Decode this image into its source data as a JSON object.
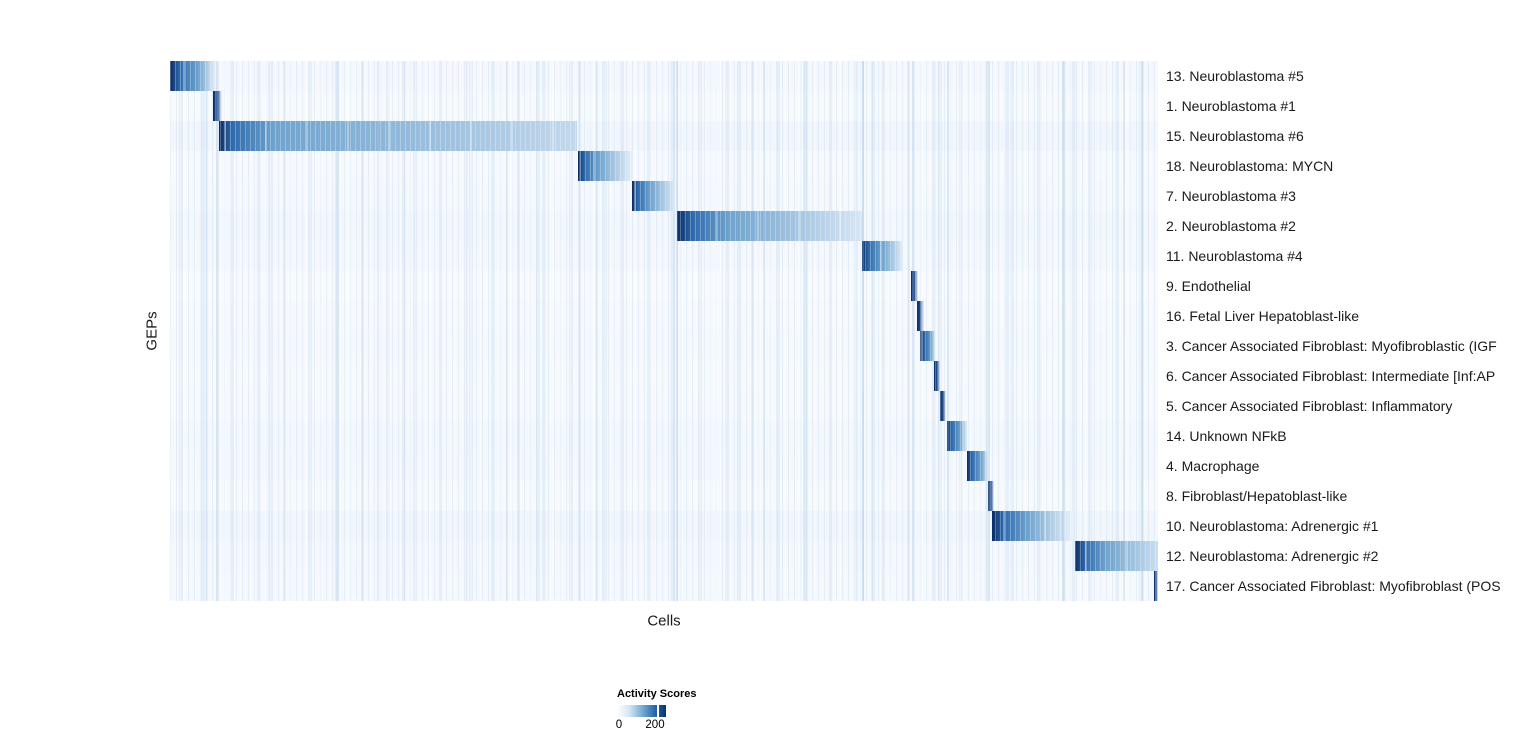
{
  "figure": {
    "background": "#ffffff"
  },
  "axes": {
    "y_label": "GEPs",
    "x_label": "Cells"
  },
  "chart_data": {
    "type": "heatmap",
    "title": "",
    "xlabel": "Cells",
    "ylabel": "GEPs",
    "x_axis": "individual cells, ordered so each GEP's high-activity cells form a diagonal band; no tick labels shown",
    "grid": false,
    "palette": {
      "dark": "#0b2b63",
      "mid": "#2e6bae",
      "light_mid": "#6fa3ce",
      "background": "#f6fafd"
    },
    "colorbar": {
      "title": "Activity Scores",
      "min": 0,
      "max_tick": 200,
      "tick_labels": [
        "0",
        "200"
      ],
      "gradient": [
        "#ffffff",
        "#08306b"
      ],
      "tick_position_frac": 0.816
    },
    "rows": [
      {
        "label": "13. Neuroblastoma #5",
        "tint": "#f4f8fd",
        "block": {
          "start": 0.0,
          "head": 0.01,
          "end": 0.047,
          "tail": "#e9f2fa",
          "thin": false
        }
      },
      {
        "label": "1. Neuroblastoma #1",
        "tint": "#f7fafd",
        "block": {
          "start": 0.0435,
          "head": 0.003,
          "end": 0.0525,
          "tail": "#eef5fb",
          "thin": true
        }
      },
      {
        "label": "15. Neuroblastoma #6",
        "tint": "#f1f6fc",
        "block": {
          "start": 0.05,
          "head": 0.013,
          "end": 0.412,
          "tail": "#c3d8ec",
          "thin": false
        }
      },
      {
        "label": "18. Neuroblastoma: MYCN",
        "tint": "#f6f9fd",
        "block": {
          "start": 0.413,
          "head": 0.007,
          "end": 0.468,
          "tail": "#e6f0f9",
          "thin": false
        }
      },
      {
        "label": "7. Neuroblastoma #3",
        "tint": "#f5f9fd",
        "block": {
          "start": 0.468,
          "head": 0.006,
          "end": 0.513,
          "tail": "#e6f0f9",
          "thin": false
        }
      },
      {
        "label": "2. Neuroblastoma #2",
        "tint": "#f2f7fc",
        "block": {
          "start": 0.513,
          "head": 0.016,
          "end": 0.7,
          "tail": "#d7e6f4",
          "thin": false
        }
      },
      {
        "label": "11. Neuroblastoma #4",
        "tint": "#f4f8fd",
        "block": {
          "start": 0.7,
          "head": 0.007,
          "end": 0.742,
          "tail": "#e2edf8",
          "thin": false
        }
      },
      {
        "label": "9. Endothelial",
        "tint": "#f7fafe",
        "block": {
          "start": 0.75,
          "head": 0.002,
          "end": 0.757,
          "tail": "#eef5fb",
          "thin": true
        }
      },
      {
        "label": "16. Fetal Liver Hepatoblast-like",
        "tint": "#f6f9fd",
        "block": {
          "start": 0.756,
          "head": 0.002,
          "end": 0.763,
          "tail": "#eef5fb",
          "thin": true
        }
      },
      {
        "label": "3. Cancer Associated Fibroblast: Myofibroblastic (IGF",
        "tint": "#f5f9fd",
        "block": {
          "start": 0.7595,
          "head": 0.005,
          "end": 0.774,
          "tail": "#dcebf6",
          "thin": false
        }
      },
      {
        "label": "6. Cancer Associated Fibroblast: Intermediate [Inf:AP",
        "tint": "#f6fafd",
        "block": {
          "start": 0.773,
          "head": 0.002,
          "end": 0.779,
          "tail": "#eef5fb",
          "thin": true
        }
      },
      {
        "label": "5. Cancer Associated Fibroblast: Inflammatory",
        "tint": "#f6f9fd",
        "block": {
          "start": 0.779,
          "head": 0.002,
          "end": 0.785,
          "tail": "#eef5fb",
          "thin": true
        }
      },
      {
        "label": "14. Unknown NFkB",
        "tint": "#f3f8fc",
        "block": {
          "start": 0.786,
          "head": 0.005,
          "end": 0.807,
          "tail": "#dfecf7",
          "thin": false
        }
      },
      {
        "label": "4. Macrophage",
        "tint": "#f4f8fd",
        "block": {
          "start": 0.807,
          "head": 0.005,
          "end": 0.828,
          "tail": "#dfecf7",
          "thin": false
        }
      },
      {
        "label": "8. Fibroblast/Hepatoblast-like",
        "tint": "#f6fafd",
        "block": {
          "start": 0.828,
          "head": 0.002,
          "end": 0.834,
          "tail": "#eef5fb",
          "thin": true
        }
      },
      {
        "label": "10. Neuroblastoma: Adrenergic #1",
        "tint": "#f1f6fc",
        "block": {
          "start": 0.832,
          "head": 0.012,
          "end": 0.914,
          "tail": "#eaf3fb",
          "thin": false
        }
      },
      {
        "label": "12. Neuroblastoma: Adrenergic #2",
        "tint": "#f4f8fd",
        "block": {
          "start": 0.916,
          "head": 0.01,
          "end": 1.0,
          "tail": "#c9def0",
          "thin": false
        }
      },
      {
        "label": "17. Cancer Associated Fibroblast: Myofibroblast (POS",
        "tint": "#f5f9fd",
        "block": {
          "start": 0.9955,
          "head": 0.001,
          "end": 1.0,
          "tail": "#9dc0e0",
          "thin": true
        }
      }
    ],
    "accent_stripes": [
      {
        "x": 0.047,
        "w": 2,
        "color": "rgba(150,185,220,0.30)"
      },
      {
        "x": 0.21,
        "w": 2,
        "color": "rgba(170,200,230,0.25)"
      },
      {
        "x": 0.34,
        "w": 2,
        "color": "rgba(170,200,230,0.25)"
      },
      {
        "x": 0.414,
        "w": 2,
        "color": "rgba(150,185,220,0.30)"
      },
      {
        "x": 0.512,
        "w": 2,
        "color": "rgba(130,170,210,0.35)"
      },
      {
        "x": 0.6,
        "w": 2,
        "color": "rgba(170,200,230,0.25)"
      },
      {
        "x": 0.7,
        "w": 2,
        "color": "rgba(130,170,210,0.35)"
      },
      {
        "x": 0.751,
        "w": 2,
        "color": "rgba(150,185,220,0.30)"
      },
      {
        "x": 0.786,
        "w": 2,
        "color": "rgba(150,185,220,0.28)"
      },
      {
        "x": 0.828,
        "w": 2,
        "color": "rgba(150,185,220,0.30)"
      },
      {
        "x": 0.903,
        "w": 2,
        "color": "rgba(150,185,220,0.30)"
      },
      {
        "x": 0.965,
        "w": 2,
        "color": "rgba(170,200,230,0.25)"
      }
    ]
  }
}
